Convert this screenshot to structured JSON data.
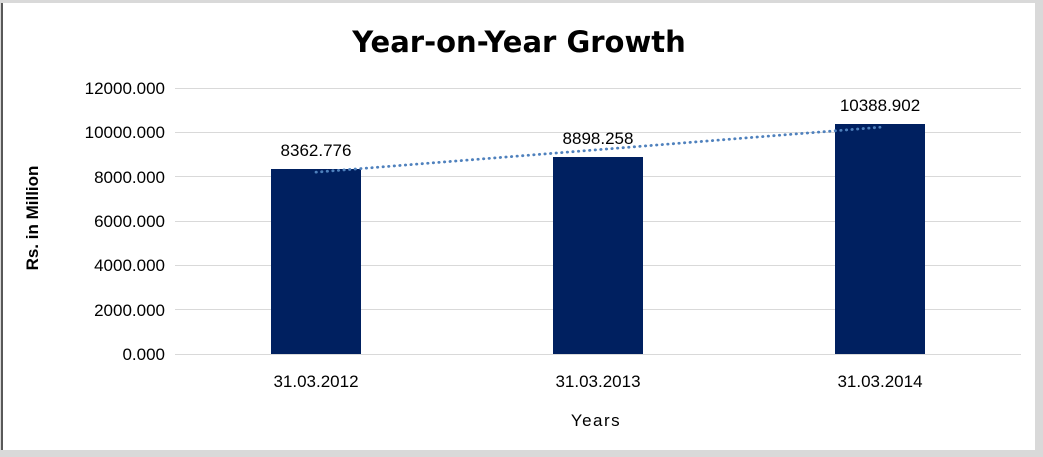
{
  "chart_data": {
    "type": "bar",
    "title": "Year-on-Year Growth",
    "categories": [
      "31.03.2012",
      "31.03.2013",
      "31.03.2014"
    ],
    "values": [
      8362.776,
      8898.258,
      10388.902
    ],
    "data_labels": [
      "8362.776",
      "8898.258",
      "10388.902"
    ],
    "xlabel": "Years",
    "ylabel": "Rs. in Million",
    "ylim": [
      0,
      12000
    ],
    "ytick_step": 2000,
    "ytick_labels": [
      "0.000",
      "2000.000",
      "4000.000",
      "6000.000",
      "8000.000",
      "10000.000",
      "12000.000"
    ],
    "grid": true,
    "legend": "none",
    "bar_color": "#002060",
    "gridline_color": "#d9d9d9",
    "text_color": "#000000",
    "frame_color": "#d9d9d9",
    "left_edge_line_color": "#595959",
    "trendline": {
      "style": "dotted",
      "color": "#4f81bd",
      "fit": "linear",
      "endpoint_values": [
        8203.582,
        10229.708
      ]
    }
  }
}
